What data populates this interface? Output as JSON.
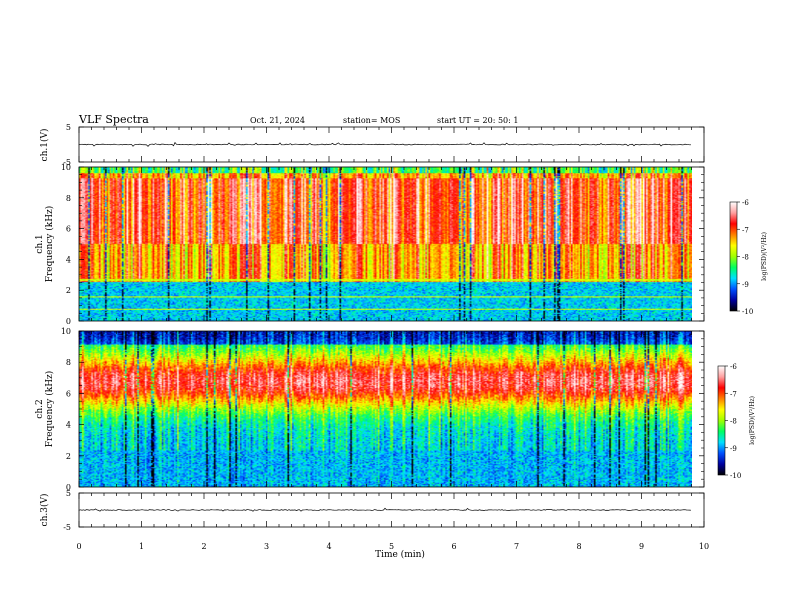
{
  "header": {
    "title": "VLF Spectra",
    "date": "Oct. 21, 2024",
    "station": "station= MOS",
    "start": "start  UT =  20: 50: 1"
  },
  "chart_data": [
    {
      "type": "line",
      "ylabel": "ch.1(V)",
      "ylim": [
        -5,
        5
      ],
      "yticks": [
        "5",
        "-5"
      ],
      "xlim": [
        0,
        10
      ],
      "series": [
        {
          "x": [
            0,
            9.8
          ],
          "y": [
            0,
            0
          ]
        }
      ]
    },
    {
      "type": "heatmap",
      "ylabel": "ch.1\nFrequency (kHz)",
      "ylim": [
        0,
        10
      ],
      "yticks": [
        "0",
        "2",
        "4",
        "6",
        "8",
        "10"
      ],
      "xlim": [
        0,
        10
      ],
      "data_xmax": 9.8,
      "colorbar": {
        "label": "log(PSD)(V²/Hz)",
        "range": [
          -10,
          -6
        ],
        "ticks": [
          "-6",
          "-7",
          "-8",
          "-9",
          "-10"
        ]
      }
    },
    {
      "type": "heatmap",
      "ylabel": "ch.2\nFrequency (kHz)",
      "ylim": [
        0,
        10
      ],
      "yticks": [
        "0",
        "2",
        "4",
        "6",
        "8",
        "10"
      ],
      "xlim": [
        0,
        10
      ],
      "data_xmax": 9.8,
      "colorbar": {
        "label": "log(PSD)(V²/Hz)",
        "range": [
          -10,
          -6
        ],
        "ticks": [
          "-6",
          "-7",
          "-8",
          "-9",
          "-10"
        ]
      }
    },
    {
      "type": "line",
      "ylabel": "ch.3(V)",
      "ylim": [
        -5,
        5
      ],
      "yticks": [
        "5",
        "-5"
      ],
      "xlim": [
        0,
        10
      ],
      "xlabel": "Time (min)",
      "xticks": [
        "0",
        "1",
        "2",
        "3",
        "4",
        "5",
        "6",
        "7",
        "8",
        "9",
        "10"
      ],
      "series": [
        {
          "x": [
            0,
            9.8
          ],
          "y": [
            0,
            0
          ]
        }
      ]
    }
  ],
  "colors": {
    "colormap": [
      "#000000",
      "#0000a0",
      "#0050ff",
      "#00e0ff",
      "#00ff60",
      "#a0ff00",
      "#ffff00",
      "#ff8000",
      "#ff0000",
      "#ffa0a0",
      "#ffffff"
    ]
  }
}
